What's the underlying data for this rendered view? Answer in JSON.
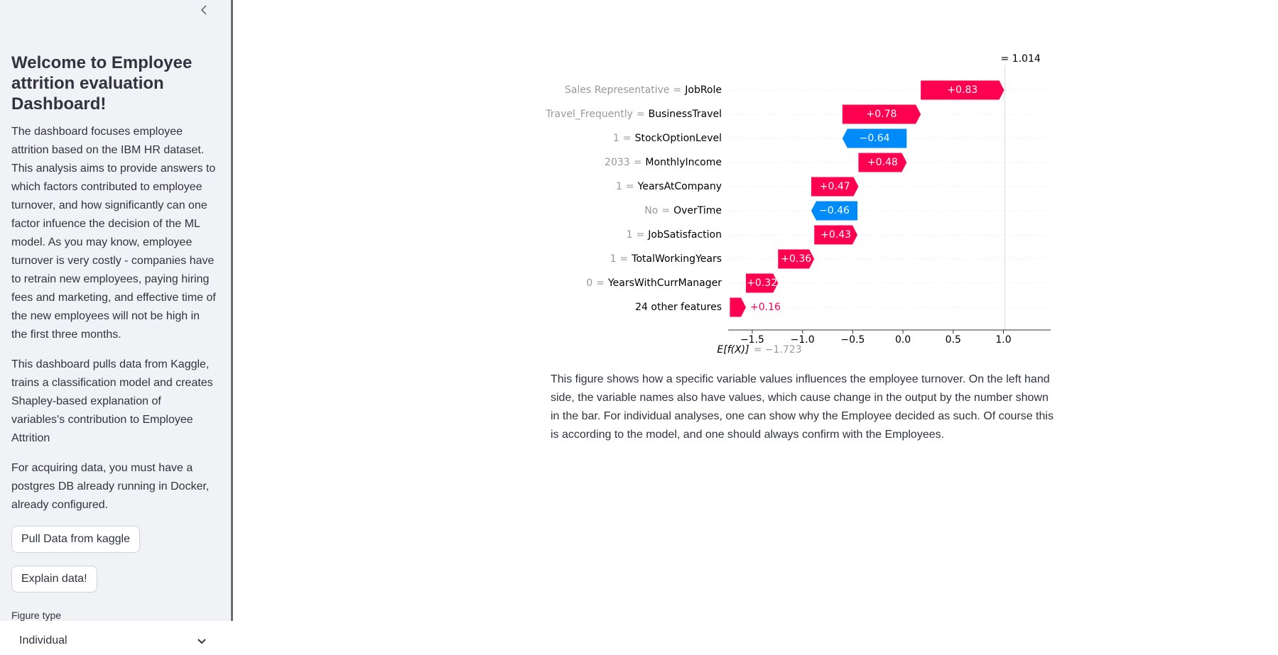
{
  "sidebar": {
    "title": "Welcome to Employee attrition evaluation Dashboard!",
    "paragraphs": [
      "The dashboard focuses employee attrition based on the IBM HR dataset. This analysis aims to provide answers to which factors contributed to employee turnover, and how significantly can one factor infuence the decision of the ML model. As you may know, employee turnover is very costly - companies have to retrain new employees, paying hiring fees and marketing, and effective time of the new employees will not be high in the first three months.",
      "This dashboard pulls data from Kaggle, trains a classification model and creates Shapley-based explanation of variables's contribution to Employee Attrition",
      "For acquiring data, you must have a postgres DB already running in Docker, already configured."
    ],
    "buttons": [
      "Pull Data from kaggle",
      "Explain data!"
    ],
    "select_label": "Figure type",
    "select_value": "Individual"
  },
  "chart_data": {
    "type": "waterfall",
    "features": [
      "JobRole",
      "BusinessTravel",
      "StockOptionLevel",
      "MonthlyIncome",
      "YearsAtCompany",
      "OverTime",
      "JobSatisfaction",
      "TotalWorkingYears",
      "YearsWithCurrManager",
      "24 other features"
    ],
    "feature_values": [
      "Sales Representative",
      "Travel_Frequently",
      "1",
      "2033",
      "1",
      "No",
      "1",
      "1",
      "0",
      null
    ],
    "separator": "=",
    "values": [
      0.83,
      0.78,
      -0.64,
      0.48,
      0.47,
      -0.46,
      0.43,
      0.36,
      0.32,
      0.16
    ],
    "value_labels": [
      "+0.83",
      "+0.78",
      "−0.64",
      "+0.48",
      "+0.47",
      "−0.46",
      "+0.43",
      "+0.36",
      "+0.32",
      "+0.16"
    ],
    "base_value": -1.723,
    "base_label": "E[f(X)]",
    "base_value_label": "= −1.723",
    "output_value": 1.014,
    "output_value_label": "= 1.014",
    "positive_color": "#ff0051",
    "negative_color": "#008bfb",
    "xlim": [
      -1.74,
      1.47
    ],
    "xticks": [
      {
        "value": -1.5,
        "label": "−1.5"
      },
      {
        "value": -1,
        "label": "−1.0"
      },
      {
        "value": -0.5,
        "label": "−0.5"
      },
      {
        "value": 0,
        "label": "0.0"
      },
      0.5,
      {
        "value": 1,
        "label": "1.0"
      }
    ]
  },
  "caption": "This figure shows how a specific variable values influences the employee turnover. On the left hand side, the variable names also have values, which cause change in the output by the number shown in the bar. For individual analyses, one can show why the Employee decided as such. Of course this is according to the model, and one should always confirm with the Employees."
}
